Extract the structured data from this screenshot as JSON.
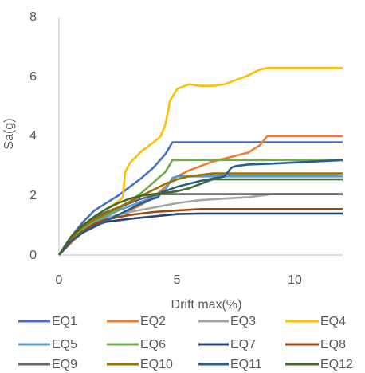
{
  "chart_data": {
    "type": "line",
    "title": "",
    "xlabel": "Drift max(%)",
    "ylabel": "Sa(g)",
    "xlim": [
      0,
      12
    ],
    "ylim": [
      0,
      8
    ],
    "xticks": [
      "0",
      "5",
      "10"
    ],
    "yticks": [
      "0",
      "2",
      "4",
      "6",
      "8"
    ],
    "grid": false,
    "legend_position": "bottom",
    "series": [
      {
        "name": "EQ1",
        "color": "#4472C4",
        "x": [
          0,
          0.5,
          1,
          1.5,
          2,
          2.5,
          3,
          3.5,
          4,
          4.5,
          4.8,
          6,
          8,
          10,
          12
        ],
        "y": [
          0,
          0.6,
          1.1,
          1.5,
          1.75,
          2.0,
          2.3,
          2.6,
          2.95,
          3.4,
          3.8,
          3.8,
          3.8,
          3.8,
          3.8
        ]
      },
      {
        "name": "EQ2",
        "color": "#ED7D31",
        "x": [
          0,
          0.5,
          1,
          1.5,
          2,
          2.5,
          3,
          3.5,
          4,
          4.5,
          5,
          5.5,
          6,
          6.5,
          7,
          7.5,
          8,
          8.5,
          8.8,
          10,
          12
        ],
        "y": [
          0,
          0.4,
          0.8,
          1.0,
          1.2,
          1.35,
          1.5,
          1.7,
          1.95,
          2.3,
          2.65,
          2.85,
          3.0,
          3.15,
          3.25,
          3.35,
          3.45,
          3.7,
          4.0,
          4.0,
          4.0
        ]
      },
      {
        "name": "EQ3",
        "color": "#A5A5A5",
        "x": [
          0,
          0.5,
          1,
          1.5,
          2,
          3,
          4,
          5,
          6,
          7,
          8,
          9,
          10,
          12
        ],
        "y": [
          0,
          0.5,
          0.85,
          1.1,
          1.25,
          1.45,
          1.6,
          1.75,
          1.85,
          1.9,
          1.95,
          2.05,
          2.05,
          2.05
        ]
      },
      {
        "name": "EQ4",
        "color": "#FFC000",
        "x": [
          0,
          0.5,
          1,
          1.5,
          2,
          2.5,
          2.7,
          2.8,
          3,
          3.5,
          4,
          4.3,
          4.5,
          4.7,
          5,
          5.5,
          6,
          6.5,
          7,
          7.5,
          8,
          8.5,
          8.8,
          10,
          12
        ],
        "y": [
          0,
          0.5,
          0.95,
          1.3,
          1.55,
          1.8,
          1.95,
          2.8,
          3.1,
          3.5,
          3.8,
          4.0,
          4.4,
          5.2,
          5.6,
          5.75,
          5.7,
          5.7,
          5.75,
          5.9,
          6.05,
          6.25,
          6.3,
          6.3,
          6.3
        ]
      },
      {
        "name": "EQ5",
        "color": "#5B9BD5",
        "x": [
          0,
          0.5,
          1,
          1.5,
          2,
          2.5,
          3,
          3.5,
          4,
          4.5,
          4.8,
          5,
          6,
          8,
          10,
          12
        ],
        "y": [
          0,
          0.5,
          0.85,
          1.1,
          1.3,
          1.5,
          1.65,
          1.8,
          1.95,
          2.2,
          2.6,
          2.65,
          2.65,
          2.65,
          2.65,
          2.65
        ]
      },
      {
        "name": "EQ6",
        "color": "#70AD47",
        "x": [
          0,
          0.5,
          1,
          1.5,
          2,
          2.5,
          3,
          3.5,
          4,
          4.5,
          4.8,
          5,
          6,
          8,
          10,
          12
        ],
        "y": [
          0,
          0.5,
          0.9,
          1.15,
          1.35,
          1.55,
          1.8,
          2.1,
          2.45,
          2.8,
          3.2,
          3.2,
          3.2,
          3.2,
          3.2,
          3.2
        ]
      },
      {
        "name": "EQ7",
        "color": "#264478",
        "x": [
          0,
          0.5,
          1,
          1.5,
          2,
          3,
          4,
          5,
          6,
          8,
          10,
          12
        ],
        "y": [
          0,
          0.45,
          0.8,
          1.0,
          1.12,
          1.22,
          1.3,
          1.38,
          1.4,
          1.4,
          1.4,
          1.4
        ]
      },
      {
        "name": "EQ8",
        "color": "#9E480E",
        "x": [
          0,
          0.5,
          1,
          1.5,
          2,
          3,
          4,
          5,
          6,
          8,
          10,
          12
        ],
        "y": [
          0,
          0.45,
          0.8,
          1.05,
          1.2,
          1.35,
          1.45,
          1.5,
          1.55,
          1.55,
          1.55,
          1.55
        ]
      },
      {
        "name": "EQ9",
        "color": "#636363",
        "x": [
          0,
          0.5,
          1,
          1.5,
          2,
          2.5,
          3,
          3.5,
          4,
          4.3,
          5,
          6,
          8,
          10,
          12
        ],
        "y": [
          0,
          0.6,
          1.0,
          1.25,
          1.45,
          1.6,
          1.75,
          1.9,
          2.0,
          2.05,
          2.05,
          2.05,
          2.05,
          2.05,
          2.05
        ]
      },
      {
        "name": "EQ10",
        "color": "#997300",
        "x": [
          0,
          0.5,
          1,
          1.5,
          2,
          2.5,
          3,
          3.5,
          4,
          4.5,
          5,
          5.5,
          6,
          6.5,
          7,
          8,
          10,
          12
        ],
        "y": [
          0,
          0.55,
          0.95,
          1.2,
          1.4,
          1.6,
          1.8,
          2.0,
          2.2,
          2.4,
          2.55,
          2.65,
          2.7,
          2.75,
          2.75,
          2.75,
          2.75,
          2.75
        ]
      },
      {
        "name": "EQ11",
        "color": "#255E91",
        "x": [
          0,
          0.5,
          1,
          1.5,
          2,
          2.5,
          3,
          3.5,
          4,
          4.2,
          4.3,
          5,
          6,
          7,
          7.3,
          7.5,
          8,
          9,
          10,
          11,
          12
        ],
        "y": [
          0,
          0.45,
          0.75,
          0.95,
          1.15,
          1.35,
          1.55,
          1.75,
          1.9,
          1.95,
          2.1,
          2.3,
          2.5,
          2.65,
          2.95,
          3.0,
          3.05,
          3.08,
          3.12,
          3.16,
          3.2
        ]
      },
      {
        "name": "EQ12",
        "color": "#43682B",
        "x": [
          0,
          0.5,
          1,
          1.5,
          2,
          2.5,
          3,
          3.5,
          4,
          4.5,
          5,
          5.5,
          6,
          6.5,
          8,
          10,
          12
        ],
        "y": [
          0,
          0.6,
          1.0,
          1.3,
          1.55,
          1.75,
          1.9,
          2.0,
          2.05,
          2.1,
          2.15,
          2.25,
          2.4,
          2.55,
          2.55,
          2.55,
          2.55
        ]
      }
    ]
  }
}
